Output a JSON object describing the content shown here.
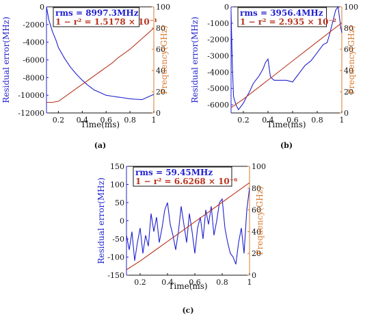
{
  "colors": {
    "blue": "#1f1fcf",
    "red": "#b8331d",
    "orange": "#d9782b",
    "axis": "#111111"
  },
  "chart_data": [
    {
      "type": "line",
      "panel_label": "(a)",
      "xlabel": "Time(ms)",
      "ylabel_left": "Residual error(MHz)",
      "ylabel_right": "Frequency(GHz)",
      "xlim": [
        0.1,
        1.0
      ],
      "ylim_left": [
        -12000,
        0
      ],
      "ylim_right": [
        0,
        100
      ],
      "xticks": [
        "0.2",
        "0.4",
        "0.6",
        "0.8",
        "1"
      ],
      "yticks_left": [
        "0",
        "-2000",
        "-4000",
        "-6000",
        "-8000",
        "-10000",
        "-12000"
      ],
      "yticks_right": [
        "100",
        "80",
        "60",
        "40",
        "20",
        "0"
      ],
      "annotation_rms_label": "rms = ",
      "annotation_rms_value": "8997.3MHz",
      "annotation_fit_label": "1 − r² = ",
      "annotation_fit_value": "1.5178 × 10⁻¹",
      "series": [
        {
          "axis": "left",
          "x": [
            0.1,
            0.12,
            0.15,
            0.18,
            0.2,
            0.25,
            0.3,
            0.35,
            0.4,
            0.45,
            0.5,
            0.55,
            0.6,
            0.65,
            0.7,
            0.75,
            0.8,
            0.85,
            0.9,
            0.95,
            1.0
          ],
          "y": [
            0,
            -1500,
            -2800,
            -3800,
            -4600,
            -5800,
            -6800,
            -7600,
            -8300,
            -8900,
            -9400,
            -9700,
            -10000,
            -10100,
            -10200,
            -10300,
            -10400,
            -10450,
            -10500,
            -10200,
            -9900
          ]
        },
        {
          "axis": "right",
          "x": [
            0.1,
            0.15,
            0.2,
            0.25,
            0.3,
            0.35,
            0.4,
            0.45,
            0.5,
            0.55,
            0.6,
            0.65,
            0.7,
            0.75,
            0.8,
            0.85,
            0.9,
            0.95,
            1.0
          ],
          "y": [
            10,
            10,
            11,
            15,
            19,
            23,
            27,
            31,
            35,
            39,
            43,
            47,
            52,
            56,
            60,
            65,
            70,
            75,
            80
          ]
        }
      ]
    },
    {
      "type": "line",
      "panel_label": "(b)",
      "xlabel": "Time(ms)",
      "ylabel_left": "Residual error(MHz)",
      "ylabel_right": "Frequency(GHz)",
      "xlim": [
        0.1,
        1.0
      ],
      "ylim_left": [
        -6500,
        0
      ],
      "ylim_right": [
        0,
        100
      ],
      "xticks": [
        "0.2",
        "0.4",
        "0.6",
        "0.8",
        "1"
      ],
      "yticks_left": [
        "0",
        "-1000",
        "-2000",
        "-3000",
        "-4000",
        "-5000",
        "-6000"
      ],
      "yticks_right": [
        "100",
        "80",
        "60",
        "40",
        "20",
        "0"
      ],
      "annotation_rms_label": "rms = ",
      "annotation_rms_value": "3956.4MHz",
      "annotation_fit_label": "1 − r² = ",
      "annotation_fit_value": "2.935 × 10⁻²",
      "series": [
        {
          "axis": "left",
          "x": [
            0.1,
            0.11,
            0.12,
            0.14,
            0.16,
            0.18,
            0.2,
            0.22,
            0.25,
            0.28,
            0.3,
            0.33,
            0.36,
            0.38,
            0.4,
            0.42,
            0.45,
            0.5,
            0.55,
            0.6,
            0.63,
            0.66,
            0.7,
            0.75,
            0.8,
            0.85,
            0.88,
            0.9,
            0.93,
            0.95,
            0.97,
            0.99,
            1.0
          ],
          "y": [
            -300,
            -3500,
            -5500,
            -6000,
            -6300,
            -6100,
            -5900,
            -5600,
            -5200,
            -4700,
            -4500,
            -4200,
            -3800,
            -3400,
            -3200,
            -4300,
            -4500,
            -4500,
            -4500,
            -4600,
            -4300,
            -4000,
            -3600,
            -3300,
            -2800,
            -2300,
            -2200,
            -1700,
            -800,
            -200,
            0,
            -1200,
            -1600
          ]
        },
        {
          "axis": "right",
          "x": [
            0.1,
            0.2,
            0.3,
            0.4,
            0.5,
            0.6,
            0.7,
            0.8,
            0.9,
            1.0
          ],
          "y": [
            5,
            13,
            22,
            31,
            40,
            49,
            58,
            67,
            76,
            85
          ]
        }
      ]
    },
    {
      "type": "line",
      "panel_label": "(c)",
      "xlabel": "Time(ms)",
      "ylabel_left": "Residual error(MHz)",
      "ylabel_right": "Frequency(GHz)",
      "xlim": [
        0.1,
        1.0
      ],
      "ylim_left": [
        -150,
        150
      ],
      "ylim_right": [
        0,
        100
      ],
      "xticks": [
        "0.2",
        "0.4",
        "0.6",
        "0.8",
        "1"
      ],
      "yticks_left": [
        "150",
        "100",
        "50",
        "0",
        "-50",
        "-100",
        "-150"
      ],
      "yticks_right": [
        "100",
        "80",
        "60",
        "40",
        "20",
        "0"
      ],
      "annotation_rms_label": "rms = ",
      "annotation_rms_value": "59.45MHz",
      "annotation_fit_label": "1 − r² = ",
      "annotation_fit_value": "6.6268 × 10⁻⁶",
      "series": [
        {
          "axis": "left",
          "x": [
            0.1,
            0.12,
            0.14,
            0.16,
            0.18,
            0.2,
            0.22,
            0.24,
            0.26,
            0.28,
            0.3,
            0.32,
            0.34,
            0.36,
            0.38,
            0.4,
            0.42,
            0.44,
            0.46,
            0.48,
            0.5,
            0.52,
            0.54,
            0.56,
            0.58,
            0.6,
            0.62,
            0.64,
            0.66,
            0.68,
            0.7,
            0.72,
            0.74,
            0.76,
            0.78,
            0.8,
            0.82,
            0.84,
            0.86,
            0.88,
            0.9,
            0.92,
            0.94,
            0.96,
            0.98,
            1.0
          ],
          "y": [
            -40,
            -80,
            -30,
            -110,
            -60,
            -20,
            -90,
            -40,
            -70,
            20,
            -30,
            10,
            -60,
            -20,
            30,
            50,
            -10,
            -40,
            -80,
            -30,
            40,
            -10,
            -60,
            20,
            -30,
            -90,
            -20,
            10,
            -50,
            30,
            -10,
            40,
            -40,
            0,
            50,
            60,
            -20,
            -60,
            -90,
            -100,
            -120,
            -60,
            -20,
            -90,
            30,
            90
          ]
        },
        {
          "axis": "right",
          "x": [
            0.1,
            0.2,
            0.3,
            0.4,
            0.5,
            0.6,
            0.7,
            0.8,
            0.9,
            1.0
          ],
          "y": [
            5,
            13,
            22,
            31,
            40,
            49,
            58,
            67,
            76,
            85
          ]
        }
      ]
    }
  ]
}
